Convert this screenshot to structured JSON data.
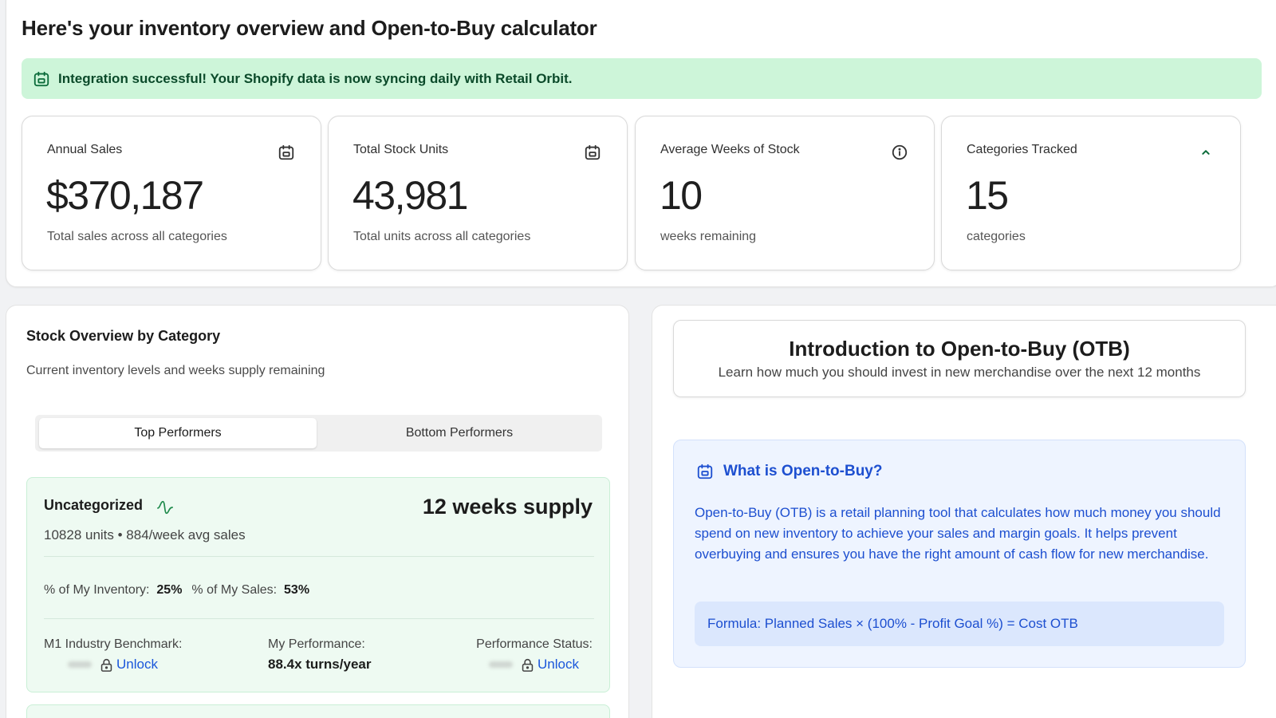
{
  "header": {
    "title": "Here's your inventory overview and Open-to-Buy calculator"
  },
  "banner": {
    "text": "Integration successful! Your Shopify data is now syncing daily with Retail Orbit.",
    "color": "#cdf5d9"
  },
  "stats": [
    {
      "label": "Annual Sales",
      "value": "$370,187",
      "sub": "Total sales across all categories",
      "icon": "calendar-icon"
    },
    {
      "label": "Total Stock Units",
      "value": "43,981",
      "sub": "Total units across all categories",
      "icon": "calendar-icon"
    },
    {
      "label": "Average Weeks of Stock",
      "value": "10",
      "sub": "weeks remaining",
      "icon": "info-icon"
    },
    {
      "label": "Categories Tracked",
      "value": "15",
      "sub": "categories",
      "icon": "chevron-up-icon"
    }
  ],
  "stock_overview": {
    "title": "Stock Overview by Category",
    "subtitle": "Current inventory levels and weeks supply remaining",
    "tabs": [
      {
        "label": "Top Performers",
        "active": true
      },
      {
        "label": "Bottom Performers",
        "active": false
      }
    ],
    "category": {
      "name": "Uncategorized",
      "supply": "12 weeks supply",
      "meta": "10828 units • 884/week avg sales",
      "inventory_label": "% of My Inventory:",
      "inventory_value": "25%",
      "sales_label": "% of My Sales:",
      "sales_value": "53%",
      "benchmark_label": "M1 Industry Benchmark:",
      "benchmark_action": "Unlock",
      "performance_label": "My Performance:",
      "performance_value": "88.4x turns/year",
      "status_label": "Performance Status:",
      "status_action": "Unlock"
    }
  },
  "otb": {
    "intro_title": "Introduction to Open-to-Buy (OTB)",
    "intro_subtitle": "Learn how much you should invest in new merchandise over the next 12 months",
    "what_title": "What is Open-to-Buy?",
    "what_body": "Open-to-Buy (OTB) is a retail planning tool that calculates how much money you should spend on new inventory to achieve your sales and margin goals. It helps prevent overbuying and ensures you have the right amount of cash flow for new merchandise.",
    "formula": "Formula: Planned Sales × (100% - Profit Goal %) = Cost OTB",
    "accent_color": "#1d4fd0"
  }
}
